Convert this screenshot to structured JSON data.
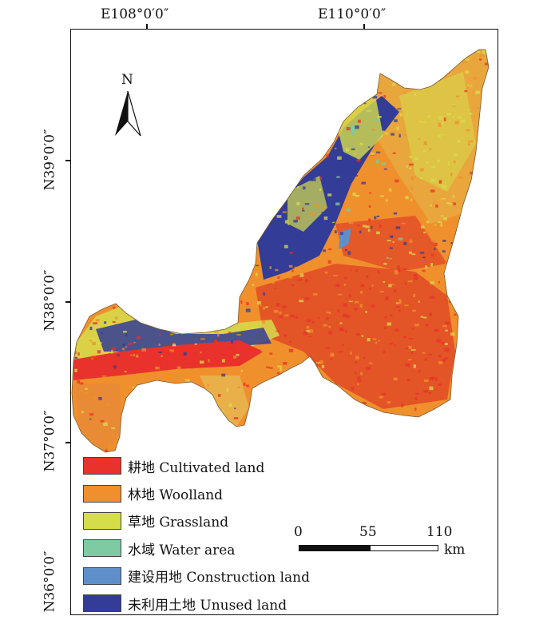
{
  "graticule": {
    "lon_labels": [
      "E108°0′0″",
      "E110°0′0″"
    ],
    "lat_labels": [
      "N39°0′0″",
      "N38°0′0″",
      "N37°0′0″",
      "N36°0′0″"
    ]
  },
  "north_arrow": {
    "label": "N"
  },
  "legend": [
    {
      "label": "耕地 Cultivated land",
      "color": "#e8322b"
    },
    {
      "label": "林地 Woolland",
      "color": "#f0902c"
    },
    {
      "label": "草地 Grassland",
      "color": "#d6dd4b"
    },
    {
      "label": "水域 Water area",
      "color": "#7ecaa2"
    },
    {
      "label": "建设用地 Construction land",
      "color": "#5f8fcb"
    },
    {
      "label": "未利用土地 Unused land",
      "color": "#333c96"
    }
  ],
  "scale_bar": {
    "ticks": [
      "0",
      "55",
      "110"
    ],
    "unit": "km"
  }
}
